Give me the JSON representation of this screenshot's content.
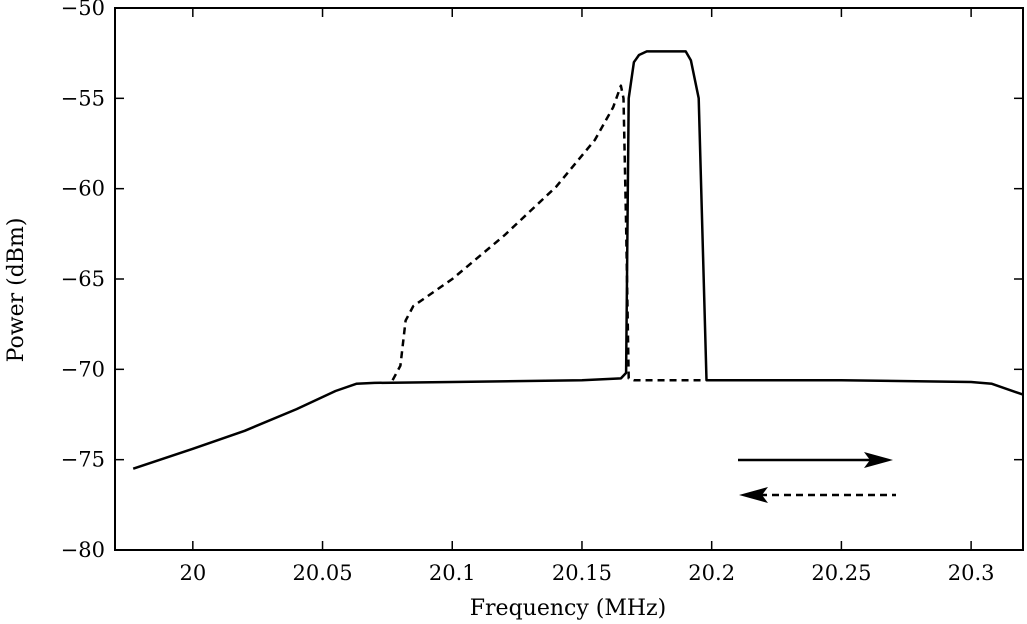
{
  "chart_data": {
    "type": "line",
    "title": "",
    "xlabel": "Frequency (MHz)",
    "ylabel": "Power (dBm)",
    "xlim": [
      19.97,
      20.32
    ],
    "ylim": [
      -80,
      -50
    ],
    "xticks": [
      20,
      20.05,
      20.1,
      20.15,
      20.2,
      20.25,
      20.3
    ],
    "xtick_labels": [
      "20",
      "20.05",
      "20.1",
      "20.15",
      "20.2",
      "20.25",
      "20.3"
    ],
    "yticks": [
      -80,
      -75,
      -70,
      -65,
      -60,
      -55,
      -50
    ],
    "ytick_labels": [
      "−80",
      "−75",
      "−70",
      "−65",
      "−60",
      "−55",
      "−50"
    ],
    "grid": false,
    "legend": "arrow glyphs at lower-right: solid arrow pointing right, dashed arrow pointing left",
    "series": [
      {
        "style": "solid",
        "direction": "right",
        "x": [
          19.977,
          20.0,
          20.02,
          20.04,
          20.055,
          20.063,
          20.07,
          20.1,
          20.15,
          20.165,
          20.167,
          20.168,
          20.17,
          20.172,
          20.175,
          20.18,
          20.19,
          20.192,
          20.195,
          20.198,
          20.2,
          20.25,
          20.3,
          20.308,
          20.32
        ],
        "y": [
          -75.5,
          -74.4,
          -73.4,
          -72.2,
          -71.2,
          -70.8,
          -70.75,
          -70.7,
          -70.6,
          -70.5,
          -70.2,
          -55.0,
          -53.0,
          -52.6,
          -52.4,
          -52.4,
          -52.4,
          -52.9,
          -55.0,
          -70.6,
          -70.6,
          -70.6,
          -70.7,
          -70.8,
          -71.4
        ]
      },
      {
        "style": "dashed",
        "direction": "left",
        "x": [
          20.077,
          20.08,
          20.082,
          20.085,
          20.1,
          20.12,
          20.14,
          20.155,
          20.162,
          20.165,
          20.166,
          20.167,
          20.168,
          20.17,
          20.19,
          20.197
        ],
        "y": [
          -70.6,
          -69.8,
          -67.3,
          -66.5,
          -65.0,
          -62.6,
          -59.9,
          -57.3,
          -55.5,
          -54.3,
          -55.0,
          -62.0,
          -70.5,
          -70.6,
          -70.6,
          -70.6
        ]
      }
    ]
  }
}
